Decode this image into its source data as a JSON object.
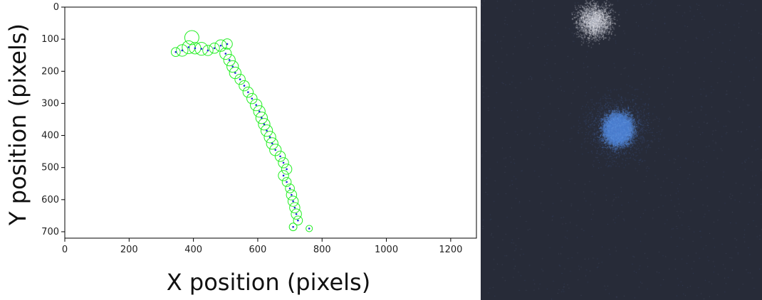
{
  "chart_data": {
    "type": "scatter",
    "xlabel": "X position (pixels)",
    "ylabel": "Y position (pixels)",
    "xlim": [
      0,
      1280
    ],
    "ylim": [
      720,
      0
    ],
    "xticks": [
      0,
      200,
      400,
      600,
      800,
      1000,
      1200
    ],
    "yticks": [
      0,
      100,
      200,
      300,
      400,
      500,
      600,
      700
    ],
    "grid": false,
    "colors": {
      "circles": "#22ee22",
      "points": "#1a2bd6"
    },
    "circles": [
      {
        "x": 395,
        "y": 95,
        "r": 22
      },
      {
        "x": 345,
        "y": 140,
        "r": 14
      },
      {
        "x": 365,
        "y": 135,
        "r": 18
      },
      {
        "x": 385,
        "y": 125,
        "r": 20
      },
      {
        "x": 405,
        "y": 128,
        "r": 18
      },
      {
        "x": 425,
        "y": 130,
        "r": 20
      },
      {
        "x": 445,
        "y": 135,
        "r": 16
      },
      {
        "x": 465,
        "y": 128,
        "r": 16
      },
      {
        "x": 485,
        "y": 120,
        "r": 18
      },
      {
        "x": 505,
        "y": 115,
        "r": 16
      },
      {
        "x": 500,
        "y": 145,
        "r": 18
      },
      {
        "x": 512,
        "y": 165,
        "r": 18
      },
      {
        "x": 522,
        "y": 185,
        "r": 18
      },
      {
        "x": 530,
        "y": 205,
        "r": 18
      },
      {
        "x": 545,
        "y": 225,
        "r": 16
      },
      {
        "x": 558,
        "y": 245,
        "r": 16
      },
      {
        "x": 570,
        "y": 265,
        "r": 16
      },
      {
        "x": 582,
        "y": 285,
        "r": 16
      },
      {
        "x": 595,
        "y": 305,
        "r": 18
      },
      {
        "x": 605,
        "y": 325,
        "r": 18
      },
      {
        "x": 612,
        "y": 345,
        "r": 18
      },
      {
        "x": 620,
        "y": 365,
        "r": 18
      },
      {
        "x": 628,
        "y": 385,
        "r": 18
      },
      {
        "x": 638,
        "y": 405,
        "r": 18
      },
      {
        "x": 645,
        "y": 425,
        "r": 18
      },
      {
        "x": 655,
        "y": 445,
        "r": 18
      },
      {
        "x": 670,
        "y": 465,
        "r": 16
      },
      {
        "x": 680,
        "y": 485,
        "r": 16
      },
      {
        "x": 690,
        "y": 505,
        "r": 16
      },
      {
        "x": 680,
        "y": 525,
        "r": 16
      },
      {
        "x": 690,
        "y": 545,
        "r": 14
      },
      {
        "x": 700,
        "y": 565,
        "r": 14
      },
      {
        "x": 705,
        "y": 585,
        "r": 16
      },
      {
        "x": 710,
        "y": 605,
        "r": 16
      },
      {
        "x": 715,
        "y": 625,
        "r": 16
      },
      {
        "x": 720,
        "y": 645,
        "r": 16
      },
      {
        "x": 725,
        "y": 665,
        "r": 14
      },
      {
        "x": 710,
        "y": 685,
        "r": 12
      },
      {
        "x": 760,
        "y": 690,
        "r": 10
      }
    ],
    "points": [
      {
        "x": 345,
        "y": 140
      },
      {
        "x": 365,
        "y": 135
      },
      {
        "x": 385,
        "y": 125
      },
      {
        "x": 405,
        "y": 128
      },
      {
        "x": 425,
        "y": 130
      },
      {
        "x": 445,
        "y": 135
      },
      {
        "x": 465,
        "y": 128
      },
      {
        "x": 485,
        "y": 120
      },
      {
        "x": 505,
        "y": 115
      },
      {
        "x": 500,
        "y": 145
      },
      {
        "x": 512,
        "y": 165
      },
      {
        "x": 522,
        "y": 185
      },
      {
        "x": 530,
        "y": 205
      },
      {
        "x": 545,
        "y": 225
      },
      {
        "x": 558,
        "y": 245
      },
      {
        "x": 570,
        "y": 265
      },
      {
        "x": 582,
        "y": 285
      },
      {
        "x": 595,
        "y": 305
      },
      {
        "x": 605,
        "y": 325
      },
      {
        "x": 612,
        "y": 345
      },
      {
        "x": 620,
        "y": 365
      },
      {
        "x": 628,
        "y": 385
      },
      {
        "x": 638,
        "y": 405
      },
      {
        "x": 645,
        "y": 425
      },
      {
        "x": 655,
        "y": 445
      },
      {
        "x": 670,
        "y": 465
      },
      {
        "x": 680,
        "y": 485
      },
      {
        "x": 690,
        "y": 505
      },
      {
        "x": 680,
        "y": 525
      },
      {
        "x": 690,
        "y": 545
      },
      {
        "x": 700,
        "y": 565
      },
      {
        "x": 705,
        "y": 585
      },
      {
        "x": 710,
        "y": 605
      },
      {
        "x": 715,
        "y": 625
      },
      {
        "x": 720,
        "y": 645
      },
      {
        "x": 725,
        "y": 665
      },
      {
        "x": 710,
        "y": 685
      },
      {
        "x": 760,
        "y": 690
      }
    ]
  },
  "image_panel": {
    "background": "#272b38",
    "white_cluster_color": "#e6e6e6",
    "blue_cluster_color": "#4a7fd0"
  }
}
